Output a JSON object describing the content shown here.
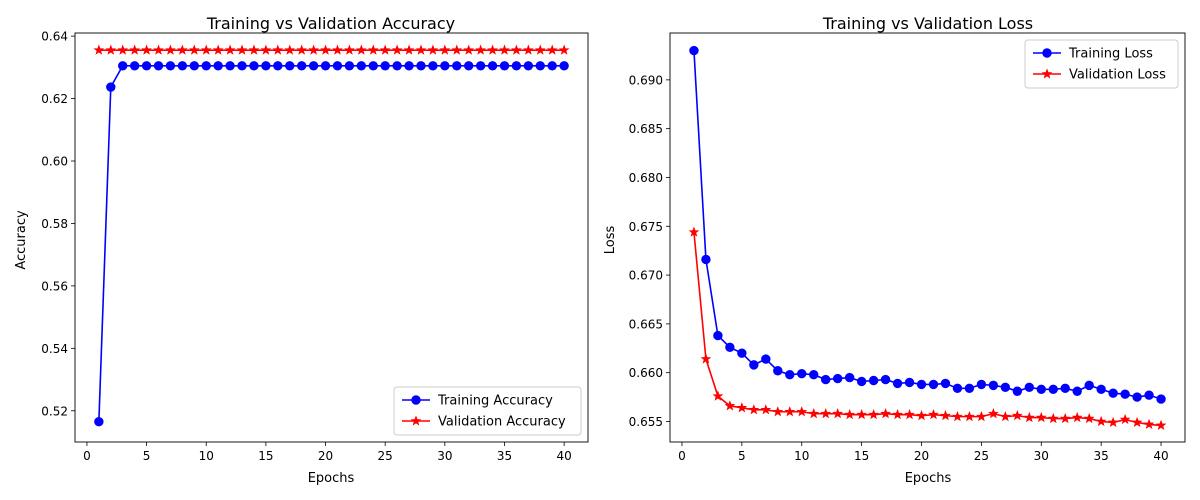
{
  "chart_data": [
    {
      "type": "line",
      "title": "Training vs Validation Accuracy",
      "xlabel": "Epochs",
      "ylabel": "Accuracy",
      "xlim": [
        -1,
        42
      ],
      "ylim": [
        0.51,
        0.641
      ],
      "xticks": [
        0,
        5,
        10,
        15,
        20,
        25,
        30,
        35,
        40
      ],
      "yticks": [
        0.52,
        0.54,
        0.56,
        0.58,
        0.6,
        0.62,
        0.64
      ],
      "ytick_labels": [
        "0.52",
        "0.54",
        "0.56",
        "0.58",
        "0.60",
        "0.62",
        "0.64"
      ],
      "grid": false,
      "legend_position": "lower-right",
      "x": [
        1,
        2,
        3,
        4,
        5,
        6,
        7,
        8,
        9,
        10,
        11,
        12,
        13,
        14,
        15,
        16,
        17,
        18,
        19,
        20,
        21,
        22,
        23,
        24,
        25,
        26,
        27,
        28,
        29,
        30,
        31,
        32,
        33,
        34,
        35,
        36,
        37,
        38,
        39,
        40
      ],
      "series": [
        {
          "name": "Training Accuracy",
          "color": "#0000ff",
          "marker": "circle",
          "values": [
            0.5165,
            0.6237,
            0.6305,
            0.6305,
            0.6305,
            0.6305,
            0.6305,
            0.6305,
            0.6305,
            0.6305,
            0.6305,
            0.6305,
            0.6305,
            0.6305,
            0.6305,
            0.6305,
            0.6305,
            0.6305,
            0.6305,
            0.6305,
            0.6305,
            0.6305,
            0.6305,
            0.6305,
            0.6305,
            0.6305,
            0.6305,
            0.6305,
            0.6305,
            0.6305,
            0.6305,
            0.6305,
            0.6305,
            0.6305,
            0.6305,
            0.6305,
            0.6305,
            0.6305,
            0.6305,
            0.6305
          ]
        },
        {
          "name": "Validation Accuracy",
          "color": "#ff0000",
          "marker": "star",
          "values": [
            0.6355,
            0.6355,
            0.6355,
            0.6355,
            0.6355,
            0.6355,
            0.6355,
            0.6355,
            0.6355,
            0.6355,
            0.6355,
            0.6355,
            0.6355,
            0.6355,
            0.6355,
            0.6355,
            0.6355,
            0.6355,
            0.6355,
            0.6355,
            0.6355,
            0.6355,
            0.6355,
            0.6355,
            0.6355,
            0.6355,
            0.6355,
            0.6355,
            0.6355,
            0.6355,
            0.6355,
            0.6355,
            0.6355,
            0.6355,
            0.6355,
            0.6355,
            0.6355,
            0.6355,
            0.6355,
            0.6355
          ]
        }
      ]
    },
    {
      "type": "line",
      "title": "Training vs Validation Loss",
      "xlabel": "Epochs",
      "ylabel": "Loss",
      "xlim": [
        -1,
        42
      ],
      "ylim": [
        0.6529,
        0.6948
      ],
      "xticks": [
        0,
        5,
        10,
        15,
        20,
        25,
        30,
        35,
        40
      ],
      "yticks": [
        0.655,
        0.66,
        0.665,
        0.67,
        0.675,
        0.68,
        0.685,
        0.69
      ],
      "ytick_labels": [
        "0.655",
        "0.660",
        "0.665",
        "0.670",
        "0.675",
        "0.680",
        "0.685",
        "0.690"
      ],
      "grid": false,
      "legend_position": "upper-right",
      "x": [
        1,
        2,
        3,
        4,
        5,
        6,
        7,
        8,
        9,
        10,
        11,
        12,
        13,
        14,
        15,
        16,
        17,
        18,
        19,
        20,
        21,
        22,
        23,
        24,
        25,
        26,
        27,
        28,
        29,
        30,
        31,
        32,
        33,
        34,
        35,
        36,
        37,
        38,
        39,
        40
      ],
      "series": [
        {
          "name": "Training Loss",
          "color": "#0000ff",
          "marker": "circle",
          "values": [
            0.693,
            0.6716,
            0.6638,
            0.6626,
            0.662,
            0.6608,
            0.6614,
            0.6602,
            0.6598,
            0.6599,
            0.6598,
            0.6593,
            0.6594,
            0.6595,
            0.6591,
            0.6592,
            0.6593,
            0.6589,
            0.659,
            0.6588,
            0.6588,
            0.6589,
            0.6584,
            0.6584,
            0.6588,
            0.6587,
            0.6585,
            0.6581,
            0.6585,
            0.6583,
            0.6583,
            0.6584,
            0.6581,
            0.6587,
            0.6583,
            0.6579,
            0.6578,
            0.6575,
            0.6577,
            0.6573
          ]
        },
        {
          "name": "Validation Loss",
          "color": "#ff0000",
          "marker": "star",
          "values": [
            0.6744,
            0.6614,
            0.6576,
            0.6566,
            0.6564,
            0.6562,
            0.6562,
            0.656,
            0.656,
            0.656,
            0.6558,
            0.6558,
            0.6558,
            0.6557,
            0.6557,
            0.6557,
            0.6558,
            0.6557,
            0.6557,
            0.6556,
            0.6557,
            0.6556,
            0.6555,
            0.6555,
            0.6555,
            0.6558,
            0.6555,
            0.6556,
            0.6554,
            0.6554,
            0.6553,
            0.6553,
            0.6554,
            0.6553,
            0.655,
            0.6549,
            0.6552,
            0.6549,
            0.6547,
            0.6546
          ]
        }
      ]
    }
  ]
}
